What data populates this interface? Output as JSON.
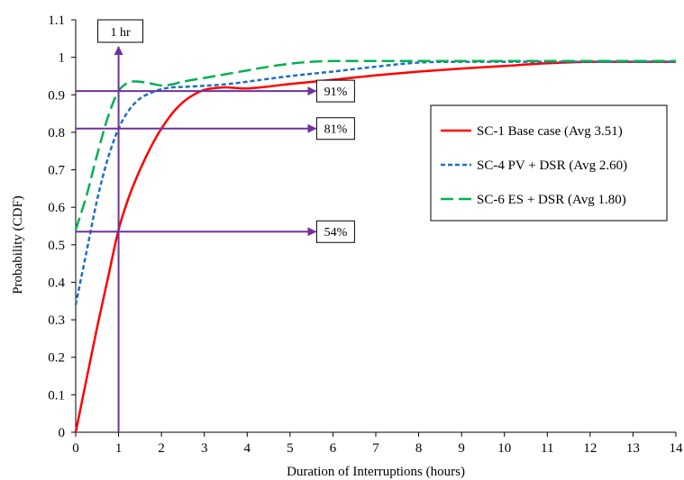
{
  "chart_data": {
    "type": "line",
    "xlabel": "Duration of Interruptions (hours)",
    "ylabel": "Probability (CDF)",
    "xlim": [
      0,
      14
    ],
    "ylim": [
      0,
      1.1
    ],
    "x_ticks": [
      "0",
      "1",
      "2",
      "3",
      "4",
      "5",
      "6",
      "7",
      "8",
      "9",
      "10",
      "11",
      "12",
      "13",
      "14"
    ],
    "y_ticks": [
      "0",
      "0.1",
      "0.2",
      "0.3",
      "0.4",
      "0.5",
      "0.6",
      "0.7",
      "0.8",
      "0.9",
      "1",
      "1.1"
    ],
    "grid": false,
    "legend_position": "right",
    "series": [
      {
        "name": "SC-1 Base case (Avg 3.51)",
        "color": "#ff0000",
        "style": "solid",
        "points": [
          [
            0,
            0
          ],
          [
            0.25,
            0.14
          ],
          [
            0.5,
            0.28
          ],
          [
            0.75,
            0.41
          ],
          [
            1,
            0.54
          ],
          [
            1.25,
            0.63
          ],
          [
            1.5,
            0.7
          ],
          [
            1.75,
            0.76
          ],
          [
            2,
            0.81
          ],
          [
            2.25,
            0.85
          ],
          [
            2.5,
            0.88
          ],
          [
            2.75,
            0.9
          ],
          [
            3,
            0.913
          ],
          [
            3.25,
            0.918
          ],
          [
            3.5,
            0.92
          ],
          [
            3.75,
            0.918
          ],
          [
            4,
            0.917
          ],
          [
            4.5,
            0.922
          ],
          [
            5,
            0.929
          ],
          [
            6,
            0.94
          ],
          [
            7,
            0.952
          ],
          [
            8,
            0.962
          ],
          [
            9,
            0.97
          ],
          [
            10,
            0.977
          ],
          [
            11,
            0.984
          ],
          [
            12,
            0.988
          ],
          [
            13,
            0.988
          ],
          [
            14,
            0.988
          ]
        ]
      },
      {
        "name": "SC-4 PV + DSR (Avg 2.60)",
        "color": "#1f6fc5",
        "style": "dotted",
        "points": [
          [
            0,
            0.34
          ],
          [
            0.25,
            0.48
          ],
          [
            0.5,
            0.62
          ],
          [
            0.75,
            0.73
          ],
          [
            1,
            0.81
          ],
          [
            1.25,
            0.86
          ],
          [
            1.5,
            0.89
          ],
          [
            1.75,
            0.905
          ],
          [
            2,
            0.915
          ],
          [
            2.25,
            0.92
          ],
          [
            2.5,
            0.921
          ],
          [
            3,
            0.924
          ],
          [
            3.5,
            0.928
          ],
          [
            4,
            0.935
          ],
          [
            5,
            0.95
          ],
          [
            6,
            0.962
          ],
          [
            7,
            0.975
          ],
          [
            8,
            0.986
          ],
          [
            9,
            0.988
          ],
          [
            10,
            0.988
          ],
          [
            11,
            0.988
          ],
          [
            12,
            0.988
          ],
          [
            13,
            0.988
          ],
          [
            14,
            0.988
          ]
        ]
      },
      {
        "name": "SC-6 ES + DSR (Avg 1.80)",
        "color": "#00b050",
        "style": "dashed",
        "points": [
          [
            0,
            0.54
          ],
          [
            0.25,
            0.63
          ],
          [
            0.5,
            0.74
          ],
          [
            0.75,
            0.84
          ],
          [
            1,
            0.91
          ],
          [
            1.25,
            0.933
          ],
          [
            1.5,
            0.935
          ],
          [
            1.75,
            0.93
          ],
          [
            2,
            0.925
          ],
          [
            2.25,
            0.928
          ],
          [
            2.5,
            0.935
          ],
          [
            3,
            0.945
          ],
          [
            3.5,
            0.955
          ],
          [
            4,
            0.965
          ],
          [
            4.5,
            0.975
          ],
          [
            5,
            0.983
          ],
          [
            5.5,
            0.988
          ],
          [
            6,
            0.99
          ],
          [
            7,
            0.99
          ],
          [
            8,
            0.99
          ],
          [
            9,
            0.99
          ],
          [
            10,
            0.99
          ],
          [
            11,
            0.99
          ],
          [
            12,
            0.99
          ],
          [
            13,
            0.99
          ],
          [
            14,
            0.99
          ]
        ]
      }
    ],
    "marker_line": {
      "x": 1,
      "label": "1 hr",
      "color": "#7030a0"
    },
    "callouts": [
      {
        "y": 0.91,
        "x_end": 5.6,
        "label": "91%"
      },
      {
        "y": 0.81,
        "x_end": 5.6,
        "label": "81%"
      },
      {
        "y": 0.535,
        "x_end": 5.6,
        "label": "54%"
      }
    ]
  }
}
